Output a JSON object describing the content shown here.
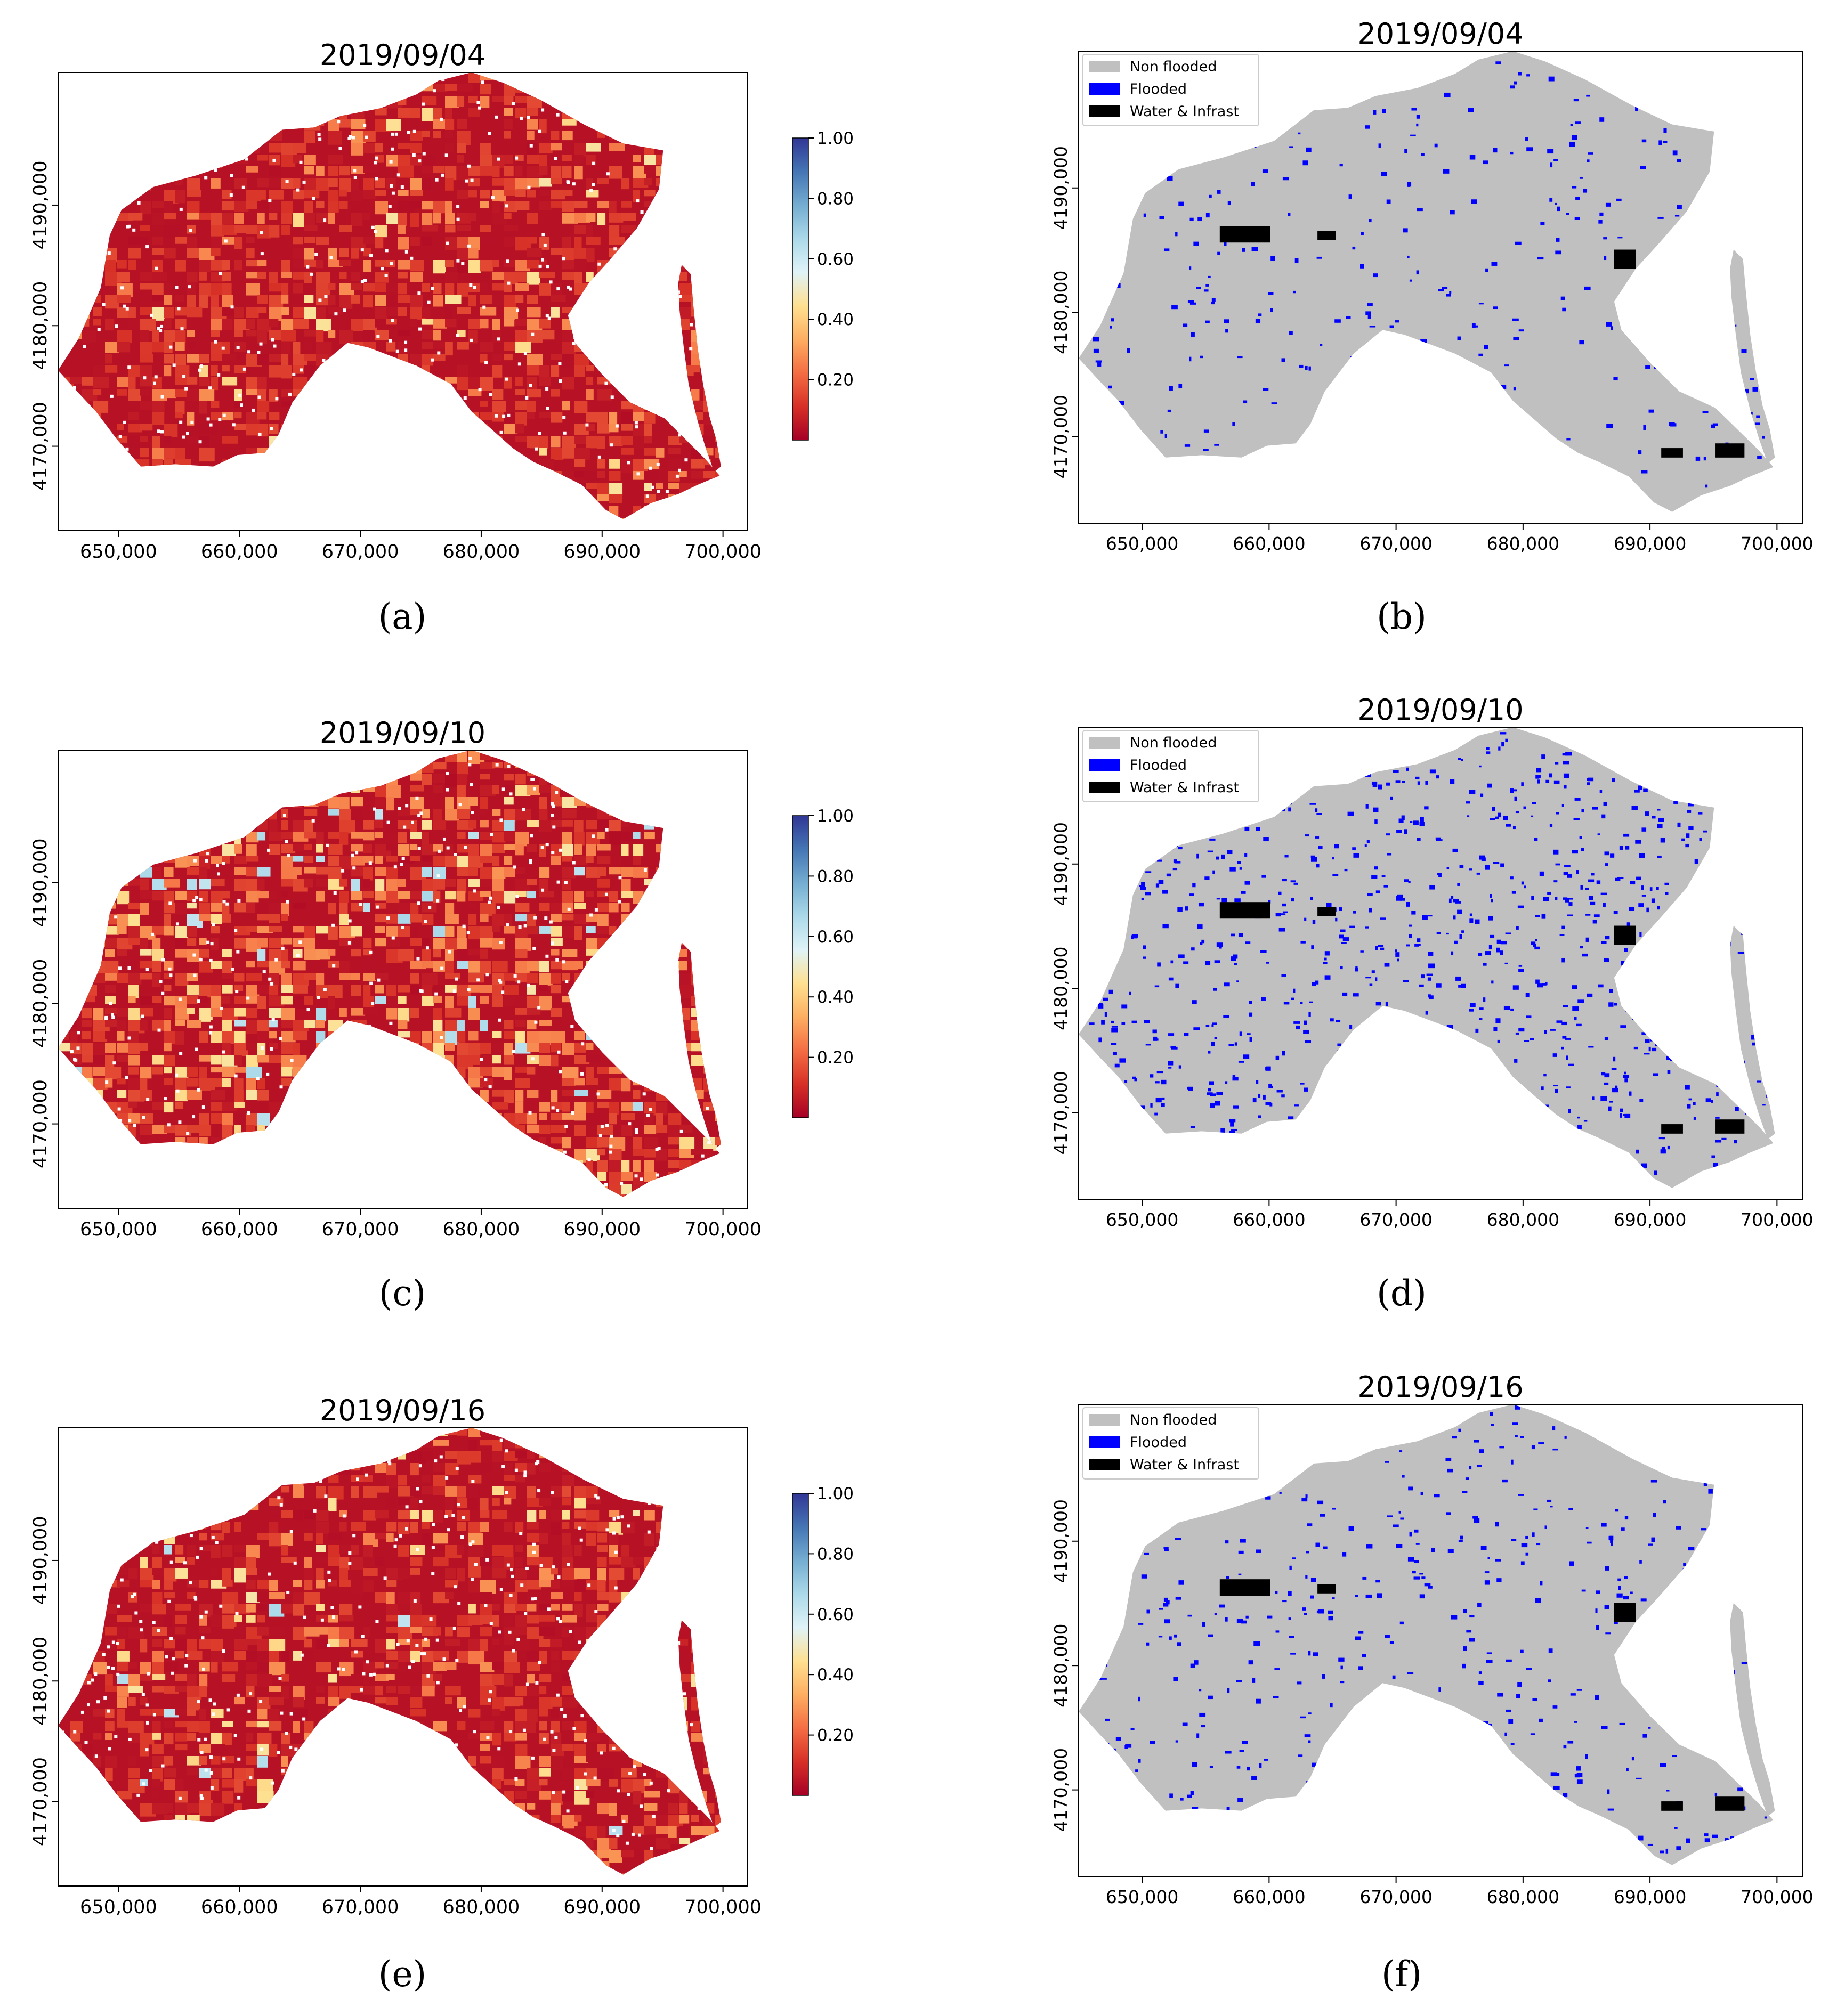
{
  "palette": {
    "ramp": [
      "#a50026",
      "#d73027",
      "#f46d43",
      "#fdae61",
      "#fee090",
      "#e0f3f8",
      "#abd9e9",
      "#74add1",
      "#4575b4",
      "#313695"
    ],
    "nonflooded": "#c0c0c0",
    "flooded": "#0000ff",
    "water": "#000000"
  },
  "chart_data": [
    {
      "id": "a",
      "caption": "(a)",
      "type": "heatmap",
      "title": "2019/09/04",
      "x_ticks": [
        "650,000",
        "660,000",
        "670,000",
        "680,000",
        "690,000",
        "700,000"
      ],
      "y_ticks": [
        "4170,000",
        "4180,000",
        "4190,000"
      ],
      "colorbar": {
        "ticks": [
          "1.00",
          "0.80",
          "0.60",
          "0.40",
          "0.20"
        ],
        "range": [
          0,
          1
        ]
      },
      "value_mix": {
        "dark_red": 0.54,
        "red": 0.33,
        "orange": 0.1,
        "yellow": 0.03,
        "light_blue": 0.0
      }
    },
    {
      "id": "b",
      "caption": "(b)",
      "type": "heatmap",
      "title": "2019/09/04",
      "x_ticks": [
        "650,000",
        "660,000",
        "670,000",
        "680,000",
        "690,000",
        "700,000"
      ],
      "y_ticks": [
        "4170,000",
        "4180,000",
        "4190,000"
      ],
      "legend": [
        "Non flooded",
        "Flooded",
        "Water & Infrast"
      ],
      "legend_position": "top-left",
      "flooded_fraction": 0.1
    },
    {
      "id": "c",
      "caption": "(c)",
      "type": "heatmap",
      "title": "2019/09/10",
      "x_ticks": [
        "650,000",
        "660,000",
        "670,000",
        "680,000",
        "690,000",
        "700,000"
      ],
      "y_ticks": [
        "4170,000",
        "4180,000",
        "4190,000"
      ],
      "colorbar": {
        "ticks": [
          "1.00",
          "0.80",
          "0.60",
          "0.40",
          "0.20"
        ],
        "range": [
          0,
          1
        ]
      },
      "value_mix": {
        "dark_red": 0.38,
        "red": 0.3,
        "orange": 0.2,
        "yellow": 0.09,
        "light_blue": 0.03
      }
    },
    {
      "id": "d",
      "caption": "(d)",
      "type": "heatmap",
      "title": "2019/09/10",
      "x_ticks": [
        "650,000",
        "660,000",
        "670,000",
        "680,000",
        "690,000",
        "700,000"
      ],
      "y_ticks": [
        "4170,000",
        "4180,000",
        "4190,000"
      ],
      "legend": [
        "Non flooded",
        "Flooded",
        "Water & Infrast"
      ],
      "legend_position": "top-left",
      "flooded_fraction": 0.3
    },
    {
      "id": "e",
      "caption": "(e)",
      "type": "heatmap",
      "title": "2019/09/16",
      "x_ticks": [
        "650,000",
        "660,000",
        "670,000",
        "680,000",
        "690,000",
        "700,000"
      ],
      "y_ticks": [
        "4170,000",
        "4180,000",
        "4190,000"
      ],
      "colorbar": {
        "ticks": [
          "1.00",
          "0.80",
          "0.60",
          "0.40",
          "0.20"
        ],
        "range": [
          0,
          1
        ]
      },
      "value_mix": {
        "dark_red": 0.6,
        "red": 0.27,
        "orange": 0.09,
        "yellow": 0.03,
        "light_blue": 0.01
      }
    },
    {
      "id": "f",
      "caption": "(f)",
      "type": "heatmap",
      "title": "2019/09/16",
      "x_ticks": [
        "650,000",
        "660,000",
        "670,000",
        "680,000",
        "690,000",
        "700,000"
      ],
      "y_ticks": [
        "4170,000",
        "4180,000",
        "4190,000"
      ],
      "legend": [
        "Non flooded",
        "Flooded",
        "Water & Infrast"
      ],
      "legend_position": "top-left",
      "flooded_fraction": 0.15
    }
  ]
}
